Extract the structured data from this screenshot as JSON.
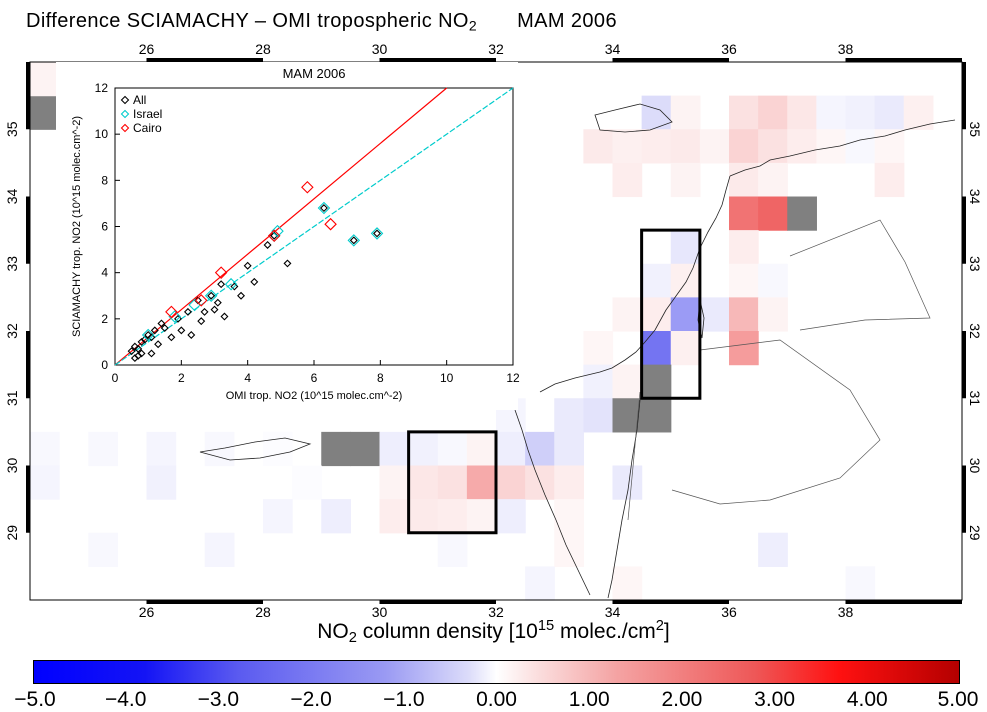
{
  "title": {
    "main": "Difference SCIAMACHY – OMI tropospheric NO",
    "sub": "2",
    "season": "MAM 2006"
  },
  "map": {
    "lon_ticks": [
      "26",
      "28",
      "30",
      "32",
      "34",
      "36",
      "38"
    ],
    "lat_ticks": [
      "29",
      "30",
      "31",
      "32",
      "33",
      "34",
      "35"
    ],
    "lon_range": [
      24,
      40
    ],
    "lat_range": [
      28,
      36
    ]
  },
  "colorbar": {
    "title_pre": "NO",
    "title_sub": "2",
    "title_mid": " column density ",
    "title_open": "[10",
    "title_sup": "15",
    "title_unit": " molec./cm",
    "title_sup2": "2",
    "title_close": "]",
    "ticks": [
      "−5.0",
      "−4.0",
      "−3.0",
      "−2.0",
      "−1.0",
      "0.00",
      "1.00",
      "2.00",
      "3.00",
      "4.00",
      "5.00"
    ],
    "range": [
      -5,
      5
    ],
    "colors": {
      "min": "#0000ff",
      "zero": "#ffffff",
      "max": "#b40000",
      "missing": "#808080"
    }
  },
  "chart_data": {
    "type": "scatter",
    "title": "MAM 2006",
    "xlabel": "OMI trop. NO2 (10^15 molec.cm^-2)",
    "ylabel": "SCIAMACHY trop. NO2 (10^15 molec.cm^-2)",
    "xlim": [
      0,
      12
    ],
    "ylim": [
      0,
      12
    ],
    "x_ticks": [
      "0",
      "2",
      "4",
      "6",
      "8",
      "10",
      "12"
    ],
    "y_ticks": [
      "0",
      "2",
      "4",
      "6",
      "8",
      "10",
      "12"
    ],
    "legend": {
      "placement": "top-left",
      "entries": [
        "All",
        "Israel",
        "Cairo"
      ]
    },
    "series": [
      {
        "name": "All",
        "color": "#000000",
        "points": [
          [
            0.5,
            0.6
          ],
          [
            0.6,
            0.8
          ],
          [
            0.7,
            0.7
          ],
          [
            0.8,
            1.0
          ],
          [
            0.9,
            1.1
          ],
          [
            1.0,
            1.3
          ],
          [
            1.1,
            1.2
          ],
          [
            1.2,
            1.5
          ],
          [
            0.6,
            0.3
          ],
          [
            0.7,
            0.4
          ],
          [
            0.8,
            0.5
          ],
          [
            1.3,
            0.9
          ],
          [
            1.5,
            1.6
          ],
          [
            1.7,
            1.2
          ],
          [
            1.9,
            2.0
          ],
          [
            2.0,
            1.5
          ],
          [
            2.2,
            2.3
          ],
          [
            2.3,
            1.3
          ],
          [
            2.5,
            2.8
          ],
          [
            2.7,
            2.3
          ],
          [
            2.9,
            3.0
          ],
          [
            3.0,
            2.4
          ],
          [
            3.2,
            3.5
          ],
          [
            3.3,
            2.1
          ],
          [
            3.6,
            3.4
          ],
          [
            3.8,
            3.0
          ],
          [
            4.0,
            4.3
          ],
          [
            4.2,
            3.6
          ],
          [
            4.6,
            5.2
          ],
          [
            4.8,
            5.6
          ],
          [
            5.2,
            4.4
          ],
          [
            6.3,
            6.8
          ],
          [
            7.2,
            5.4
          ],
          [
            7.9,
            5.7
          ],
          [
            1.1,
            0.5
          ],
          [
            1.4,
            1.8
          ],
          [
            2.6,
            1.9
          ],
          [
            3.1,
            2.7
          ]
        ]
      },
      {
        "name": "Israel",
        "color": "#00cccc",
        "points": [
          [
            1.0,
            1.3
          ],
          [
            1.8,
            2.1
          ],
          [
            2.4,
            2.6
          ],
          [
            2.9,
            3.0
          ],
          [
            3.5,
            3.5
          ],
          [
            4.8,
            5.6
          ],
          [
            4.9,
            5.8
          ],
          [
            6.3,
            6.8
          ],
          [
            7.2,
            5.4
          ],
          [
            7.9,
            5.7
          ]
        ]
      },
      {
        "name": "Cairo",
        "color": "#ff0000",
        "points": [
          [
            1.7,
            2.3
          ],
          [
            2.6,
            2.8
          ],
          [
            3.2,
            4.0
          ],
          [
            4.8,
            5.6
          ],
          [
            5.8,
            7.7
          ],
          [
            6.5,
            6.1
          ]
        ]
      }
    ],
    "fits": [
      {
        "name": "Cairo",
        "color": "#ff0000",
        "slope": 1.2,
        "intercept": 0.0
      },
      {
        "name": "Israel",
        "color": "#00cccc",
        "slope": 1.0,
        "intercept": 0.0
      }
    ]
  },
  "grid": {
    "cells": [
      {
        "lon": 24.0,
        "lat": 35.0,
        "v": 9
      },
      {
        "lon": 24.0,
        "lat": 35.5,
        "v": 0.4
      },
      {
        "lon": 34.5,
        "lat": 35.0,
        "v": -1.0
      },
      {
        "lon": 35.0,
        "lat": 35.0,
        "v": 0.4
      },
      {
        "lon": 36.0,
        "lat": 35.0,
        "v": 1.0
      },
      {
        "lon": 36.5,
        "lat": 35.0,
        "v": 1.2
      },
      {
        "lon": 37.0,
        "lat": 35.0,
        "v": 0.8
      },
      {
        "lon": 37.5,
        "lat": 35.0,
        "v": -0.3
      },
      {
        "lon": 38.0,
        "lat": 35.0,
        "v": -0.4
      },
      {
        "lon": 38.5,
        "lat": 35.0,
        "v": -0.6
      },
      {
        "lon": 39.0,
        "lat": 35.0,
        "v": 0.5
      },
      {
        "lon": 33.5,
        "lat": 34.5,
        "v": 0.7
      },
      {
        "lon": 34.0,
        "lat": 34.5,
        "v": 0.5
      },
      {
        "lon": 34.5,
        "lat": 34.5,
        "v": 0.6
      },
      {
        "lon": 35.0,
        "lat": 34.5,
        "v": 0.7
      },
      {
        "lon": 35.5,
        "lat": 34.5,
        "v": 0.4
      },
      {
        "lon": 36.0,
        "lat": 34.5,
        "v": 1.2
      },
      {
        "lon": 36.5,
        "lat": 34.5,
        "v": 1.0
      },
      {
        "lon": 37.0,
        "lat": 34.5,
        "v": 0.6
      },
      {
        "lon": 37.5,
        "lat": 34.5,
        "v": 0.3
      },
      {
        "lon": 38.0,
        "lat": 34.5,
        "v": -0.2
      },
      {
        "lon": 38.5,
        "lat": 34.5,
        "v": 0.3
      },
      {
        "lon": 34.0,
        "lat": 34.0,
        "v": 0.6
      },
      {
        "lon": 35.0,
        "lat": 34.0,
        "v": 0.4
      },
      {
        "lon": 36.0,
        "lat": 34.0,
        "v": 0.7
      },
      {
        "lon": 36.5,
        "lat": 34.0,
        "v": 0.4
      },
      {
        "lon": 38.5,
        "lat": 34.0,
        "v": 0.6
      },
      {
        "lon": 36.0,
        "lat": 33.5,
        "v": 2.6
      },
      {
        "lon": 36.5,
        "lat": 33.5,
        "v": 2.8
      },
      {
        "lon": 37.0,
        "lat": 33.5,
        "v": 9
      },
      {
        "lon": 35.0,
        "lat": 33.0,
        "v": -0.7
      },
      {
        "lon": 36.0,
        "lat": 33.0,
        "v": 0.6
      },
      {
        "lon": 34.5,
        "lat": 32.5,
        "v": -0.4
      },
      {
        "lon": 35.0,
        "lat": 32.5,
        "v": 0.5
      },
      {
        "lon": 36.0,
        "lat": 32.5,
        "v": 0.3
      },
      {
        "lon": 36.5,
        "lat": 32.5,
        "v": -0.2
      },
      {
        "lon": 34.0,
        "lat": 32.0,
        "v": 0.4
      },
      {
        "lon": 34.5,
        "lat": 32.0,
        "v": 0.6
      },
      {
        "lon": 35.0,
        "lat": 32.0,
        "v": -2.0
      },
      {
        "lon": 35.5,
        "lat": 32.0,
        "v": -0.6
      },
      {
        "lon": 36.0,
        "lat": 32.0,
        "v": 1.6
      },
      {
        "lon": 36.5,
        "lat": 32.0,
        "v": 0.4
      },
      {
        "lon": 33.5,
        "lat": 31.5,
        "v": 0.3
      },
      {
        "lon": 34.5,
        "lat": 31.5,
        "v": -2.6
      },
      {
        "lon": 35.0,
        "lat": 31.5,
        "v": 0.5
      },
      {
        "lon": 36.0,
        "lat": 31.5,
        "v": 2.0
      },
      {
        "lon": 34.5,
        "lat": 31.0,
        "v": 9
      },
      {
        "lon": 33.5,
        "lat": 31.0,
        "v": -0.4
      },
      {
        "lon": 34.0,
        "lat": 31.0,
        "v": 0.4
      },
      {
        "lon": 32.0,
        "lat": 30.5,
        "v": -0.3
      },
      {
        "lon": 33.0,
        "lat": 30.5,
        "v": -0.6
      },
      {
        "lon": 33.5,
        "lat": 30.5,
        "v": -0.8
      },
      {
        "lon": 34.0,
        "lat": 30.5,
        "v": 9
      },
      {
        "lon": 34.5,
        "lat": 30.5,
        "v": 9
      },
      {
        "lon": 24.0,
        "lat": 30.0,
        "v": -0.2
      },
      {
        "lon": 25.0,
        "lat": 30.0,
        "v": -0.2
      },
      {
        "lon": 26.0,
        "lat": 30.0,
        "v": -0.3
      },
      {
        "lon": 27.0,
        "lat": 30.0,
        "v": -0.2
      },
      {
        "lon": 28.0,
        "lat": 30.0,
        "v": -0.1
      },
      {
        "lon": 29.0,
        "lat": 30.0,
        "v": 9
      },
      {
        "lon": 29.5,
        "lat": 30.0,
        "v": 9
      },
      {
        "lon": 30.0,
        "lat": 30.0,
        "v": -0.5
      },
      {
        "lon": 30.5,
        "lat": 30.0,
        "v": -0.4
      },
      {
        "lon": 31.0,
        "lat": 30.0,
        "v": -0.2
      },
      {
        "lon": 31.5,
        "lat": 30.0,
        "v": 0.4
      },
      {
        "lon": 32.0,
        "lat": 30.0,
        "v": -0.5
      },
      {
        "lon": 32.5,
        "lat": 30.0,
        "v": -1.2
      },
      {
        "lon": 33.0,
        "lat": 30.0,
        "v": -0.6
      },
      {
        "lon": 24.0,
        "lat": 29.5,
        "v": -0.3
      },
      {
        "lon": 26.0,
        "lat": 29.5,
        "v": -0.4
      },
      {
        "lon": 28.5,
        "lat": 29.5,
        "v": -0.1
      },
      {
        "lon": 30.0,
        "lat": 29.5,
        "v": 0.4
      },
      {
        "lon": 30.5,
        "lat": 29.5,
        "v": 0.8
      },
      {
        "lon": 31.0,
        "lat": 29.5,
        "v": 1.0
      },
      {
        "lon": 31.5,
        "lat": 29.5,
        "v": 1.8
      },
      {
        "lon": 32.0,
        "lat": 29.5,
        "v": 1.2
      },
      {
        "lon": 32.5,
        "lat": 29.5,
        "v": 1.0
      },
      {
        "lon": 33.0,
        "lat": 29.5,
        "v": 0.6
      },
      {
        "lon": 34.0,
        "lat": 29.5,
        "v": -0.6
      },
      {
        "lon": 28.0,
        "lat": 29.0,
        "v": -0.3
      },
      {
        "lon": 29.0,
        "lat": 29.0,
        "v": -0.5
      },
      {
        "lon": 30.0,
        "lat": 29.0,
        "v": 0.6
      },
      {
        "lon": 30.5,
        "lat": 29.0,
        "v": 0.7
      },
      {
        "lon": 31.0,
        "lat": 29.0,
        "v": 0.6
      },
      {
        "lon": 31.5,
        "lat": 29.0,
        "v": 0.4
      },
      {
        "lon": 32.0,
        "lat": 29.0,
        "v": -0.5
      },
      {
        "lon": 33.0,
        "lat": 29.0,
        "v": 0.3
      },
      {
        "lon": 25.0,
        "lat": 28.5,
        "v": -0.2
      },
      {
        "lon": 27.0,
        "lat": 28.5,
        "v": -0.3
      },
      {
        "lon": 31.0,
        "lat": 28.5,
        "v": -0.2
      },
      {
        "lon": 33.0,
        "lat": 28.5,
        "v": 0.3
      },
      {
        "lon": 36.5,
        "lat": 28.5,
        "v": -0.5
      },
      {
        "lon": 32.5,
        "lat": 28.0,
        "v": -0.3
      },
      {
        "lon": 34.0,
        "lat": 28.0,
        "v": 0.3
      },
      {
        "lon": 38.0,
        "lat": 28.0,
        "v": -0.2
      }
    ]
  },
  "regions": [
    {
      "name": "Israel",
      "lon": [
        34.5,
        35.5
      ],
      "lat": [
        31.0,
        33.5
      ]
    },
    {
      "name": "Cairo",
      "lon": [
        30.5,
        32.0
      ],
      "lat": [
        29.0,
        30.5
      ]
    }
  ]
}
